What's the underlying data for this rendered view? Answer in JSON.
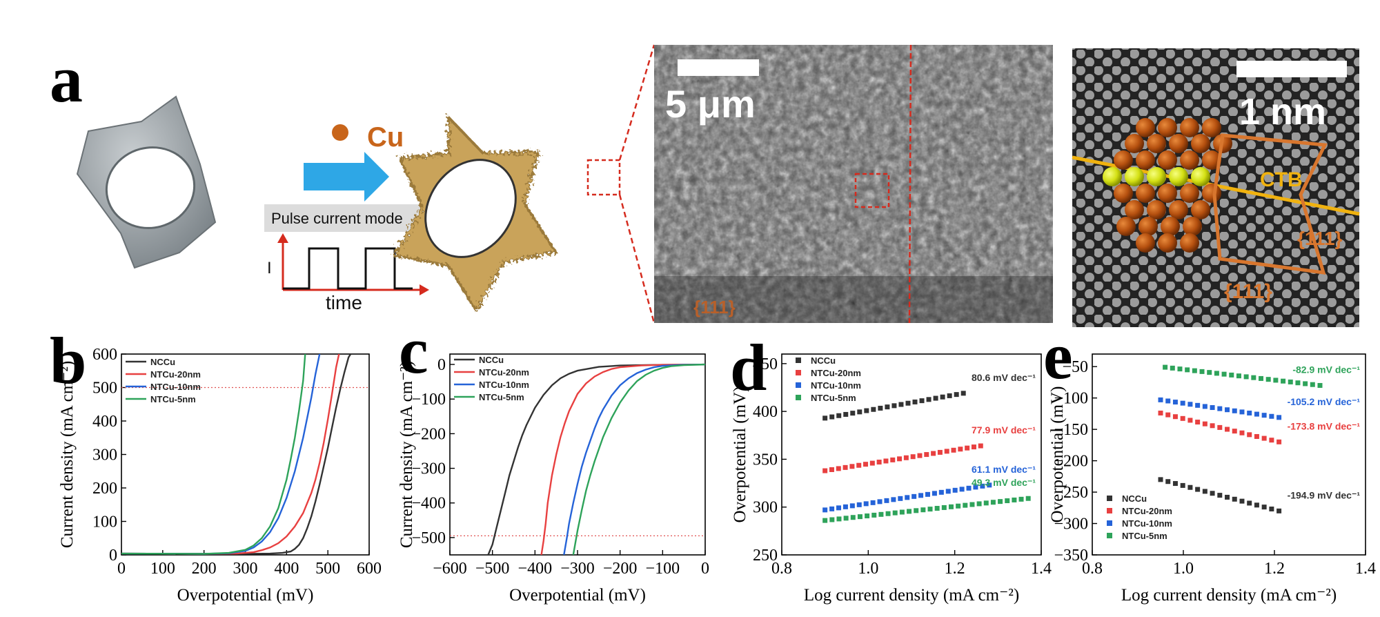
{
  "panel_a": {
    "letter": "a",
    "legend_cu": "Cu",
    "pulse_label": "Pulse current mode",
    "y_symbol": "I",
    "x_word": "time",
    "sem_scale": "5 μm",
    "sem_facet": "{111}",
    "hrtem_scale": "1 nm",
    "ctb_label": "CTB",
    "facet_right": "{111}",
    "facet_bottom": "{111}",
    "colors": {
      "arrow": "#2ea7e6",
      "cu": "#c8651b",
      "pulse": "#d52b1e",
      "dashed_box": "#d52b1e",
      "twin": "#d8762e",
      "boundary": "#f0b20f"
    }
  },
  "chart_data": [
    {
      "panel": "b",
      "type": "line",
      "xlabel": "Overpotential (mV)",
      "ylabel": "Current density (mA cm⁻²)",
      "xlim": [
        0,
        600
      ],
      "ylim": [
        0,
        600
      ],
      "xticks": [
        0,
        100,
        200,
        300,
        400,
        500,
        600
      ],
      "yticks": [
        0,
        100,
        200,
        300,
        400,
        500,
        600
      ],
      "reference_line": {
        "y": 500,
        "style": "dotted",
        "color": "#e05050"
      },
      "legend_position": "top-left",
      "series": [
        {
          "name": "NCCu",
          "color": "#333333",
          "x": [
            0,
            200,
            300,
            360,
            390,
            410,
            420,
            430,
            440,
            450,
            460,
            470,
            480,
            490,
            500,
            510,
            520,
            530,
            540,
            550,
            555
          ],
          "y": [
            4,
            3,
            3,
            4,
            6,
            10,
            18,
            30,
            50,
            80,
            115,
            160,
            210,
            265,
            320,
            380,
            440,
            495,
            545,
            590,
            600
          ]
        },
        {
          "name": "NTCu-20nm",
          "color": "#e84040",
          "x": [
            0,
            200,
            280,
            320,
            340,
            360,
            380,
            400,
            420,
            440,
            460,
            470,
            480,
            490,
            500,
            510,
            520,
            527
          ],
          "y": [
            4,
            3,
            4,
            8,
            14,
            22,
            35,
            55,
            85,
            125,
            185,
            225,
            275,
            335,
            405,
            480,
            560,
            600
          ]
        },
        {
          "name": "NTCu-10nm",
          "color": "#2563d8",
          "x": [
            0,
            200,
            260,
            300,
            320,
            340,
            360,
            380,
            400,
            420,
            440,
            450,
            460,
            470,
            480
          ],
          "y": [
            4,
            3,
            5,
            12,
            22,
            40,
            68,
            110,
            170,
            250,
            350,
            410,
            470,
            540,
            600
          ]
        },
        {
          "name": "NTCu-5nm",
          "color": "#2ea35a",
          "x": [
            0,
            200,
            260,
            300,
            320,
            340,
            360,
            380,
            400,
            410,
            420,
            430,
            440,
            445
          ],
          "y": [
            4,
            3,
            6,
            15,
            28,
            50,
            85,
            140,
            225,
            285,
            350,
            430,
            520,
            600
          ]
        }
      ]
    },
    {
      "panel": "c",
      "type": "line",
      "xlabel": "Overpotential (mV)",
      "ylabel": "Current density (mA cm⁻²)",
      "xlim": [
        -600,
        0
      ],
      "ylim": [
        -550,
        30
      ],
      "xticks": [
        -600,
        -500,
        -400,
        -300,
        -200,
        -100,
        0
      ],
      "yticks": [
        -500,
        -400,
        -300,
        -200,
        -100,
        0
      ],
      "reference_line": {
        "y": -495,
        "style": "dotted",
        "color": "#e05050"
      },
      "legend_position": "top-left",
      "series": [
        {
          "name": "NCCu",
          "color": "#333333",
          "x": [
            -510,
            -500,
            -490,
            -480,
            -470,
            -460,
            -450,
            -440,
            -430,
            -420,
            -400,
            -380,
            -360,
            -340,
            -320,
            -300,
            -250,
            -200,
            -100,
            0
          ],
          "y": [
            -550,
            -520,
            -470,
            -420,
            -370,
            -320,
            -280,
            -240,
            -205,
            -175,
            -125,
            -88,
            -60,
            -40,
            -27,
            -18,
            -7,
            -3,
            -1,
            0
          ]
        },
        {
          "name": "NTCu-20nm",
          "color": "#e84040",
          "x": [
            -385,
            -380,
            -375,
            -370,
            -360,
            -350,
            -340,
            -330,
            -320,
            -300,
            -280,
            -260,
            -240,
            -220,
            -200,
            -150,
            -100,
            0
          ],
          "y": [
            -550,
            -510,
            -460,
            -400,
            -320,
            -260,
            -210,
            -170,
            -135,
            -85,
            -55,
            -35,
            -22,
            -13,
            -8,
            -3,
            -1,
            0
          ]
        },
        {
          "name": "NTCu-10nm",
          "color": "#2563d8",
          "x": [
            -332,
            -325,
            -320,
            -310,
            -300,
            -290,
            -280,
            -270,
            -260,
            -250,
            -240,
            -220,
            -200,
            -180,
            -160,
            -140,
            -120,
            -100,
            -50,
            0
          ],
          "y": [
            -550,
            -500,
            -460,
            -400,
            -345,
            -295,
            -255,
            -220,
            -185,
            -155,
            -130,
            -90,
            -60,
            -40,
            -25,
            -15,
            -8,
            -4,
            -1,
            0
          ]
        },
        {
          "name": "NTCu-5nm",
          "color": "#2ea35a",
          "x": [
            -310,
            -300,
            -290,
            -280,
            -270,
            -260,
            -250,
            -240,
            -220,
            -200,
            -180,
            -160,
            -140,
            -120,
            -100,
            -80,
            -50,
            0
          ],
          "y": [
            -550,
            -480,
            -420,
            -365,
            -320,
            -280,
            -245,
            -210,
            -155,
            -110,
            -75,
            -48,
            -30,
            -18,
            -10,
            -5,
            -2,
            0
          ]
        }
      ]
    },
    {
      "panel": "d",
      "type": "scatter",
      "xlabel": "Log current density (mA cm⁻²)",
      "ylabel": "Overpotential (mV)",
      "xlim": [
        0.8,
        1.4
      ],
      "ylim": [
        250,
        460
      ],
      "xticks": [
        0.8,
        1.0,
        1.2,
        1.4
      ],
      "yticks": [
        250,
        300,
        350,
        400,
        450
      ],
      "legend_position": "top-left",
      "series": [
        {
          "name": "NCCu",
          "color": "#333333",
          "x_start": 0.9,
          "x_end": 1.22,
          "y_start": 393,
          "y_end": 419,
          "annotation": "80.6 mV dec⁻¹"
        },
        {
          "name": "NTCu-20nm",
          "color": "#e84040",
          "x_start": 0.9,
          "x_end": 1.26,
          "y_start": 338,
          "y_end": 364,
          "annotation": "77.9 mV dec⁻¹"
        },
        {
          "name": "NTCu-10nm",
          "color": "#2563d8",
          "x_start": 0.9,
          "x_end": 1.28,
          "y_start": 297,
          "y_end": 323,
          "annotation": "61.1 mV dec⁻¹"
        },
        {
          "name": "NTCu-5nm",
          "color": "#2ea35a",
          "x_start": 0.9,
          "x_end": 1.37,
          "y_start": 286,
          "y_end": 309,
          "annotation": "49.3 mV dec⁻¹"
        }
      ]
    },
    {
      "panel": "e",
      "type": "scatter",
      "xlabel": "Log current density (mA cm⁻²)",
      "ylabel": "Overpotential (mV)",
      "xlim": [
        0.8,
        1.4
      ],
      "ylim": [
        -350,
        -30
      ],
      "xticks": [
        0.8,
        1.0,
        1.2,
        1.4
      ],
      "yticks": [
        -350,
        -300,
        -250,
        -200,
        -150,
        -100,
        -50
      ],
      "legend_position": "bottom-left",
      "series": [
        {
          "name": "NCCu",
          "color": "#333333",
          "x_start": 0.95,
          "x_end": 1.21,
          "y_start": -230,
          "y_end": -280,
          "annotation": "-194.9 mV dec⁻¹"
        },
        {
          "name": "NTCu-20nm",
          "color": "#e84040",
          "x_start": 0.95,
          "x_end": 1.21,
          "y_start": -124,
          "y_end": -170,
          "annotation": "-173.8 mV dec⁻¹"
        },
        {
          "name": "NTCu-10nm",
          "color": "#2563d8",
          "x_start": 0.95,
          "x_end": 1.21,
          "y_start": -103,
          "y_end": -131,
          "annotation": "-105.2 mV dec⁻¹"
        },
        {
          "name": "NTCu-5nm",
          "color": "#2ea35a",
          "x_start": 0.96,
          "x_end": 1.3,
          "y_start": -51,
          "y_end": -80,
          "annotation": "-82.9 mV dec⁻¹"
        }
      ]
    }
  ]
}
